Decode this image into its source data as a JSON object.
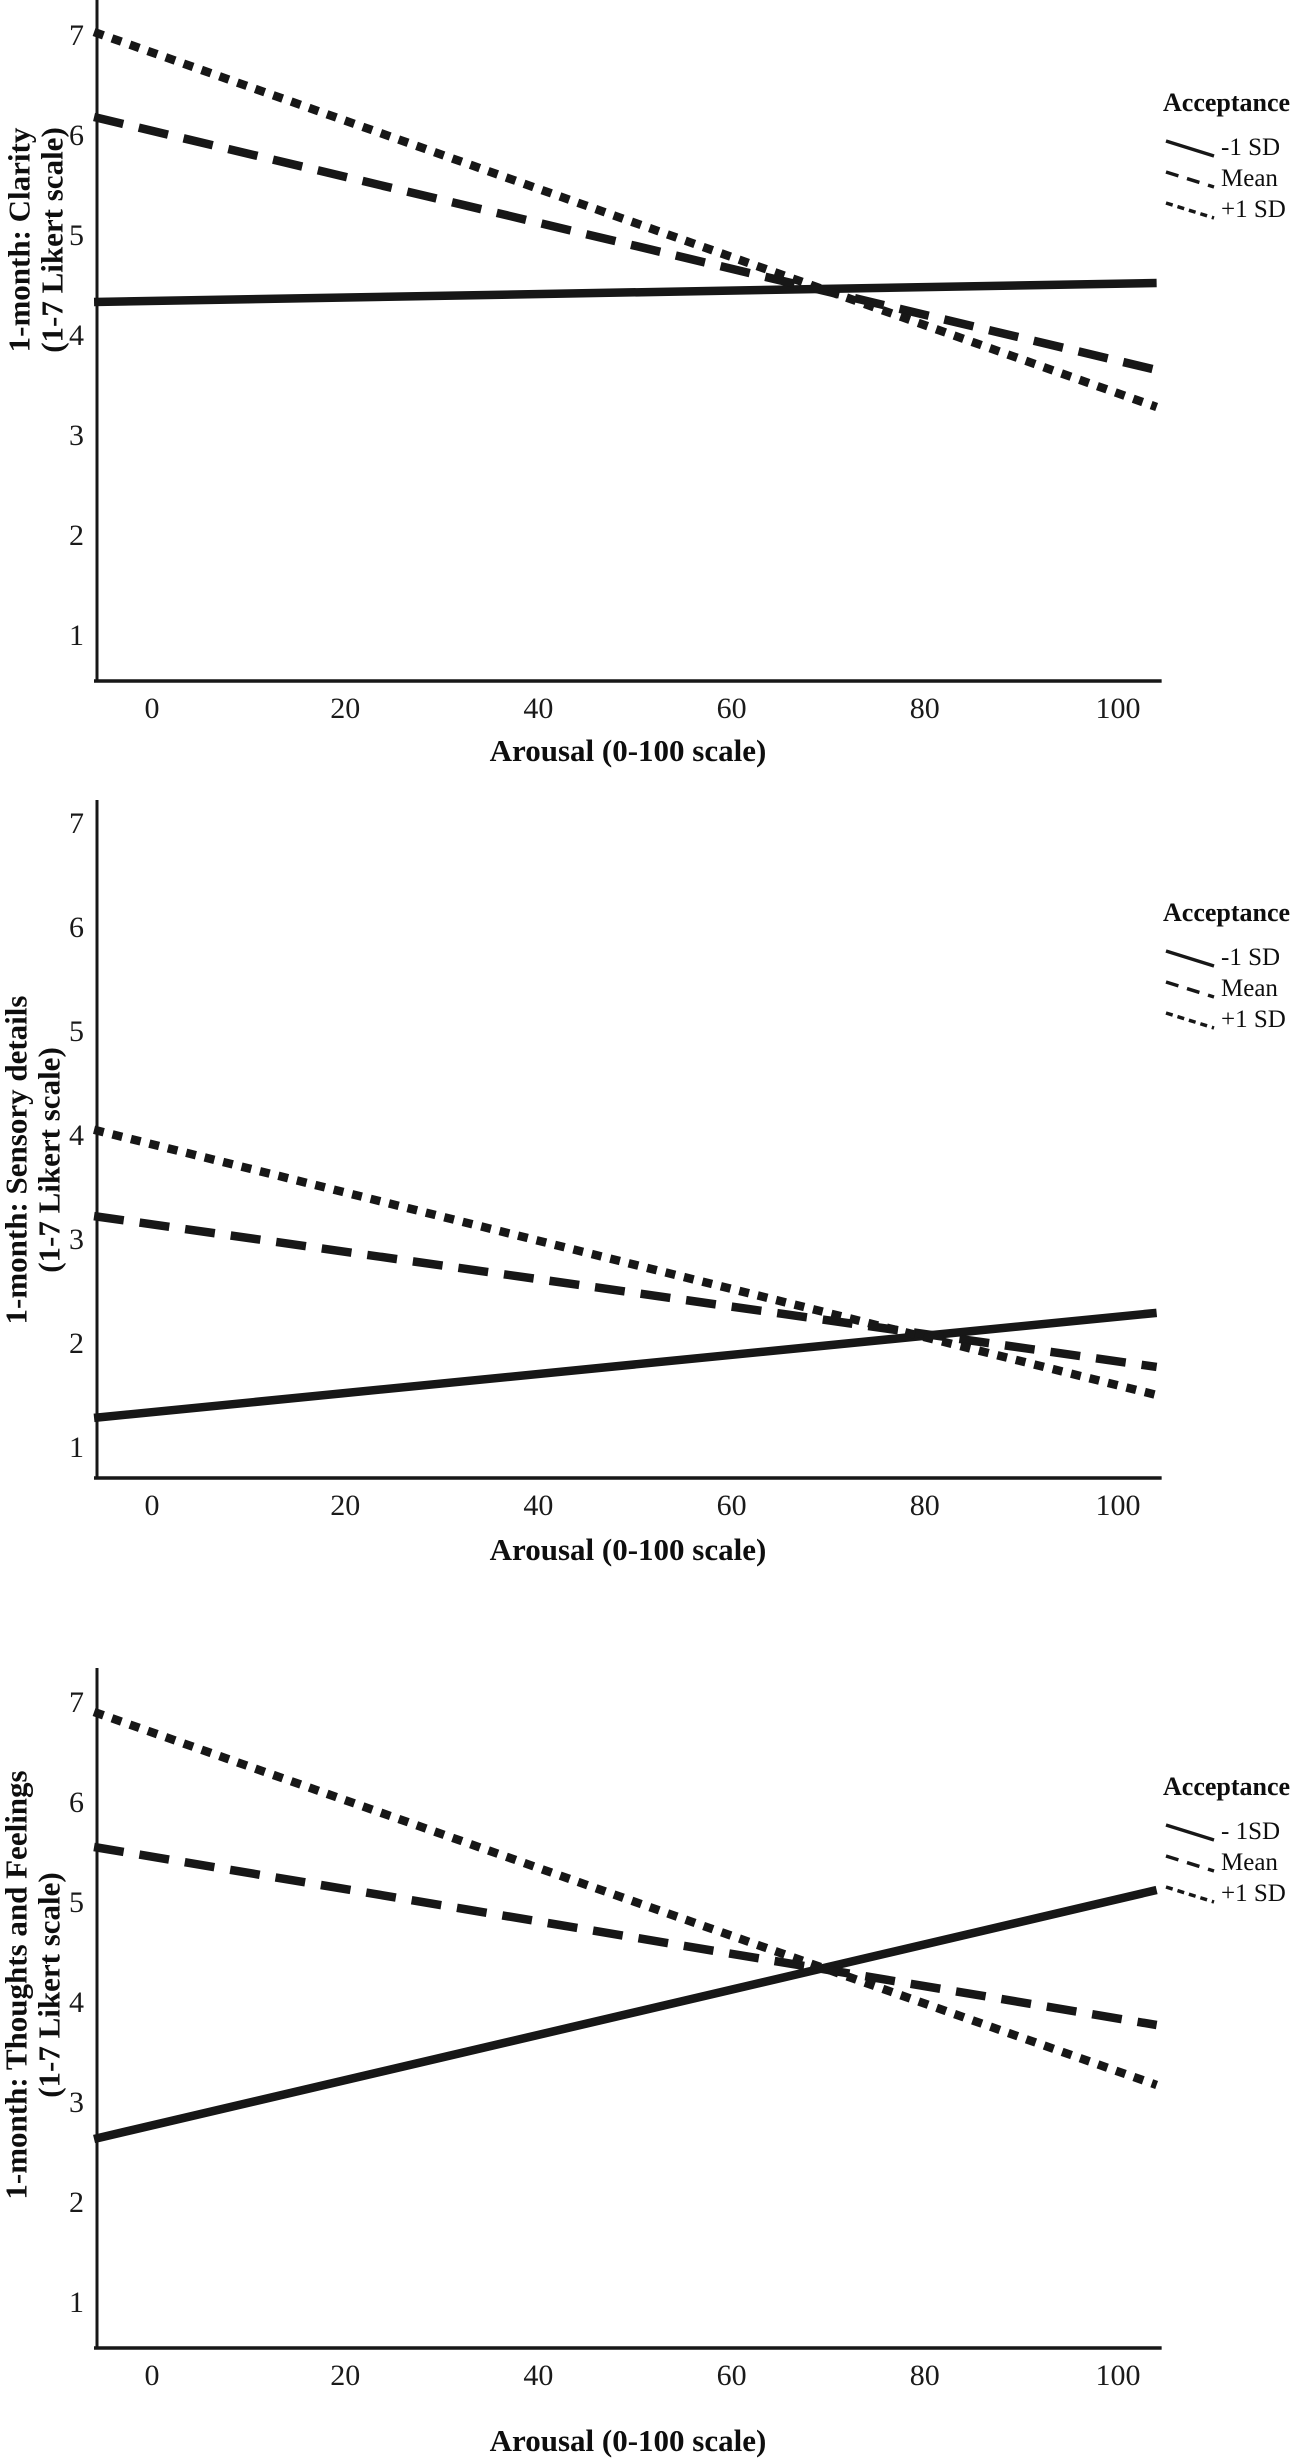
{
  "chart_data": [
    {
      "type": "line",
      "panel": "top",
      "ylabel": "1-month: Clarity (1-7 Likert scale)",
      "ylabel_line1": "1-month: Clarity",
      "ylabel_line2": "(1-7 Likert scale)",
      "xlabel": "Arousal (0-100 scale)",
      "xlim": [
        -6,
        104
      ],
      "ylim": [
        1,
        7
      ],
      "x_ticks": [
        0,
        20,
        40,
        60,
        80,
        100
      ],
      "y_ticks": [
        1,
        2,
        3,
        4,
        5,
        6,
        7
      ],
      "grid": false,
      "legend_title": "Acceptance",
      "legend_position": "right",
      "series": [
        {
          "name": "-1 SD",
          "style": "solid",
          "x": [
            -6,
            104
          ],
          "y": [
            4.33,
            4.52
          ]
        },
        {
          "name": "Mean",
          "style": "dashed",
          "x": [
            -6,
            104
          ],
          "y": [
            6.18,
            3.65
          ]
        },
        {
          "name": "+1 SD",
          "style": "dotted",
          "x": [
            -6,
            104
          ],
          "y": [
            7.03,
            3.28
          ]
        }
      ]
    },
    {
      "type": "line",
      "panel": "middle",
      "ylabel": "1-month: Sensory details (1-7 Likert scale)",
      "ylabel_line1": "1-month: Sensory details",
      "ylabel_line2": "(1-7 Likert scale)",
      "xlabel": "Arousal (0-100 scale)",
      "xlim": [
        -6,
        104
      ],
      "ylim": [
        1,
        7
      ],
      "x_ticks": [
        0,
        20,
        40,
        60,
        80,
        100
      ],
      "y_ticks": [
        1,
        2,
        3,
        4,
        5,
        6,
        7
      ],
      "grid": false,
      "legend_title": "Acceptance",
      "legend_position": "right",
      "series": [
        {
          "name": "-1 SD",
          "style": "solid",
          "x": [
            -6,
            104
          ],
          "y": [
            1.28,
            2.29
          ]
        },
        {
          "name": "Mean",
          "style": "dashed",
          "x": [
            -6,
            104
          ],
          "y": [
            3.22,
            1.77
          ]
        },
        {
          "name": "+1 SD",
          "style": "dotted",
          "x": [
            -6,
            104
          ],
          "y": [
            4.05,
            1.5
          ]
        }
      ]
    },
    {
      "type": "line",
      "panel": "bottom",
      "ylabel": "1-month: Thoughts and Feelings (1-7 Likert scale)",
      "ylabel_line1": "1-month: Thoughts and Feelings",
      "ylabel_line2": "(1-7 Likert scale)",
      "xlabel": "Arousal (0-100 scale)",
      "xlim": [
        -6,
        104
      ],
      "ylim": [
        1,
        7
      ],
      "x_ticks": [
        0,
        20,
        40,
        60,
        80,
        100
      ],
      "y_ticks": [
        1,
        2,
        3,
        4,
        5,
        6,
        7
      ],
      "grid": false,
      "legend_title": "Acceptance",
      "legend_position": "right",
      "series": [
        {
          "name": "- 1SD",
          "style": "solid",
          "x": [
            -6,
            104
          ],
          "y": [
            2.63,
            5.12
          ]
        },
        {
          "name": "Mean",
          "style": "dashed",
          "x": [
            -6,
            104
          ],
          "y": [
            5.55,
            3.77
          ]
        },
        {
          "name": "+1 SD",
          "style": "dotted",
          "x": [
            -6,
            104
          ],
          "y": [
            6.9,
            3.17
          ]
        }
      ]
    }
  ],
  "colors": {
    "line": "#171717",
    "text": "#0e0e0e",
    "background": "#ffffff"
  }
}
